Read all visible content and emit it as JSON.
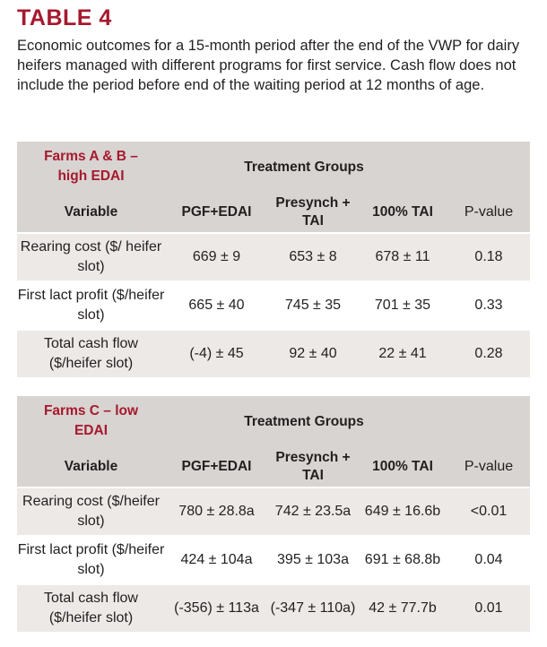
{
  "title": "TABLE 4",
  "caption": "Economic outcomes for a 15-month period after the end of the VWP for dairy heifers managed with different programs for first service. Cash flow does not include the period before end of the waiting period at 12 months of age.",
  "colors": {
    "accent": "#a6192e",
    "header_bg": "#d8d4d1",
    "row_shaded": "#ece9e7"
  },
  "tables": [
    {
      "farm_label_line1": "Farms A & B –",
      "farm_label_line2": "high EDAI",
      "group_header": "Treatment Groups",
      "columns": [
        "Variable",
        "PGF+EDAI",
        "Presynch + TAI",
        "100% TAI",
        "P-value"
      ],
      "rows": [
        {
          "variable": "Rearing cost ($/ heifer slot)",
          "pgf": "669 ± 9",
          "presynch": "653 ± 8",
          "tai": "678 ± 11",
          "p": "0.18"
        },
        {
          "variable": "First lact profit ($/heifer slot)",
          "pgf": "665 ± 40",
          "presynch": "745 ± 35",
          "tai": "701 ± 35",
          "p": "0.33"
        },
        {
          "variable": "Total cash flow ($/heifer slot)",
          "pgf": "(-4) ± 45",
          "presynch": "92 ± 40",
          "tai": "22 ± 41",
          "p": "0.28"
        }
      ]
    },
    {
      "farm_label_line1": "Farms C – low",
      "farm_label_line2": "EDAI",
      "group_header": "Treatment Groups",
      "columns": [
        "Variable",
        "PGF+EDAI",
        "Presynch + TAI",
        "100% TAI",
        "P-value"
      ],
      "rows": [
        {
          "variable": "Rearing cost ($/heifer slot)",
          "pgf": "780 ± 28.8a",
          "presynch": "742 ± 23.5a",
          "tai": "649 ± 16.6b",
          "p": "<0.01"
        },
        {
          "variable": "First lact profit ($/heifer slot)",
          "pgf": "424 ± 104a",
          "presynch": "395 ± 103a",
          "tai": "691 ± 68.8b",
          "p": "0.04"
        },
        {
          "variable": "Total cash flow ($/heifer slot)",
          "pgf": "(-356) ± 113a",
          "presynch": "(-347 ± 110a)",
          "tai": "42 ± 77.7b",
          "p": "0.01"
        }
      ]
    }
  ]
}
